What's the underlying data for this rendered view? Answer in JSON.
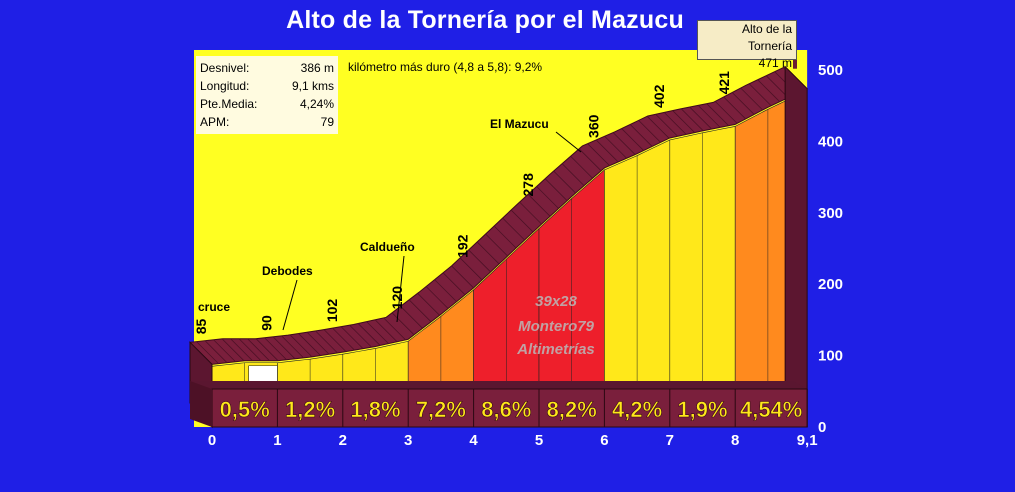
{
  "title": "Alto de la Tornería por el Mazucu",
  "stats": [
    {
      "label": "Desnivel:",
      "value": "386 m"
    },
    {
      "label": "Longitud:",
      "value": "9,1 kms"
    },
    {
      "label": "Pte.Media:",
      "value": "4,24%"
    },
    {
      "label": "APM:",
      "value": "79"
    }
  ],
  "hardest_km": "kilómetro más duro (4,8 a 5,8):   9,2%",
  "summit": {
    "name": "Alto de la Tornería",
    "altitude": "471 m"
  },
  "watermark": [
    "39x28",
    "Montero79",
    "Altimetrías"
  ],
  "colors": {
    "background": "#1f1fe6",
    "plot_area": "#ffff22",
    "ribbon": "#7a1f3c",
    "grade_low": "#ffe81a",
    "grade_mid": "#ff8a1e",
    "grade_high": "#ee1f2b",
    "grade_flat": "#ffffff",
    "axis_text": "#ffffff",
    "grade_text": "#ffe81a"
  },
  "chart_data": {
    "type": "area",
    "xlabel": "",
    "ylabel": "",
    "xlim": [
      0,
      9.1
    ],
    "ylim": [
      0,
      500
    ],
    "x_ticks": [
      "0",
      "1",
      "2",
      "3",
      "4",
      "5",
      "6",
      "7",
      "8",
      "9,1"
    ],
    "x_tick_values": [
      0,
      1,
      2,
      3,
      4,
      5,
      6,
      7,
      8,
      9.1
    ],
    "y_ticks": [
      "0",
      "100",
      "200",
      "300",
      "400",
      "500"
    ],
    "y_tick_values": [
      0,
      100,
      200,
      300,
      400,
      500
    ],
    "profile": {
      "x": [
        0,
        0.5,
        1,
        1.5,
        2,
        2.5,
        3,
        3.5,
        4,
        4.5,
        5,
        5.5,
        6,
        6.5,
        7,
        7.5,
        8,
        8.5,
        9.1
      ],
      "y": [
        85,
        90,
        90,
        95,
        102,
        110,
        120,
        155,
        192,
        235,
        278,
        320,
        360,
        380,
        402,
        412,
        421,
        445,
        471
      ]
    },
    "elevation_labels": [
      {
        "x": 0,
        "label": "85",
        "value": 85
      },
      {
        "x": 1,
        "label": "90",
        "value": 90
      },
      {
        "x": 2,
        "label": "102",
        "value": 102
      },
      {
        "x": 3,
        "label": "120",
        "value": 120
      },
      {
        "x": 4,
        "label": "192",
        "value": 192
      },
      {
        "x": 5,
        "label": "278",
        "value": 278
      },
      {
        "x": 6,
        "label": "360",
        "value": 360
      },
      {
        "x": 7,
        "label": "402",
        "value": 402
      },
      {
        "x": 8,
        "label": "421",
        "value": 421
      }
    ],
    "segments": [
      {
        "from": 0,
        "to": 1,
        "grade": "0,5%",
        "value": 0.5
      },
      {
        "from": 1,
        "to": 2,
        "grade": "1,2%",
        "value": 1.2
      },
      {
        "from": 2,
        "to": 3,
        "grade": "1,8%",
        "value": 1.8
      },
      {
        "from": 3,
        "to": 4,
        "grade": "7,2%",
        "value": 7.2
      },
      {
        "from": 4,
        "to": 5,
        "grade": "8,6%",
        "value": 8.6
      },
      {
        "from": 5,
        "to": 6,
        "grade": "8,2%",
        "value": 8.2
      },
      {
        "from": 6,
        "to": 7,
        "grade": "4,2%",
        "value": 4.2
      },
      {
        "from": 7,
        "to": 8,
        "grade": "1,9%",
        "value": 1.9
      },
      {
        "from": 8,
        "to": 9.1,
        "grade": "4,54%",
        "value": 4.54
      }
    ],
    "flat_section": {
      "from": 0.5,
      "to": 1.0
    },
    "places": [
      {
        "name": "cruce",
        "x": 0
      },
      {
        "name": "Debodes",
        "x": 1.1
      },
      {
        "name": "Caldueño",
        "x": 2.9
      },
      {
        "name": "El Mazucu",
        "x": 5.6
      }
    ]
  }
}
